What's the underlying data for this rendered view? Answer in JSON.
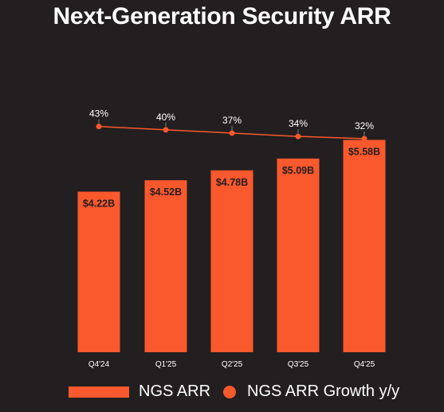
{
  "colors": {
    "background": "#231f20",
    "bar": "#fa582d",
    "line": "#fa582d",
    "text": "#ffffff",
    "bar_label": "#231f20"
  },
  "chart_data": {
    "type": "bar",
    "title": "Next-Generation Security ARR",
    "categories": [
      "Q4'24",
      "Q1'25",
      "Q2'25",
      "Q3'25",
      "Q4'25"
    ],
    "series": [
      {
        "name": "NGS ARR",
        "type": "bar",
        "values": [
          4.22,
          4.52,
          4.78,
          5.09,
          5.58
        ],
        "labels": [
          "$4.22B",
          "$4.52B",
          "$4.78B",
          "$5.09B",
          "$5.58B"
        ]
      },
      {
        "name": "NGS ARR Growth y/y",
        "type": "line",
        "values": [
          43,
          40,
          37,
          34,
          32
        ],
        "labels": [
          "43%",
          "40%",
          "37%",
          "34%",
          "32%"
        ]
      }
    ],
    "legend": "bottom",
    "grid": false
  }
}
